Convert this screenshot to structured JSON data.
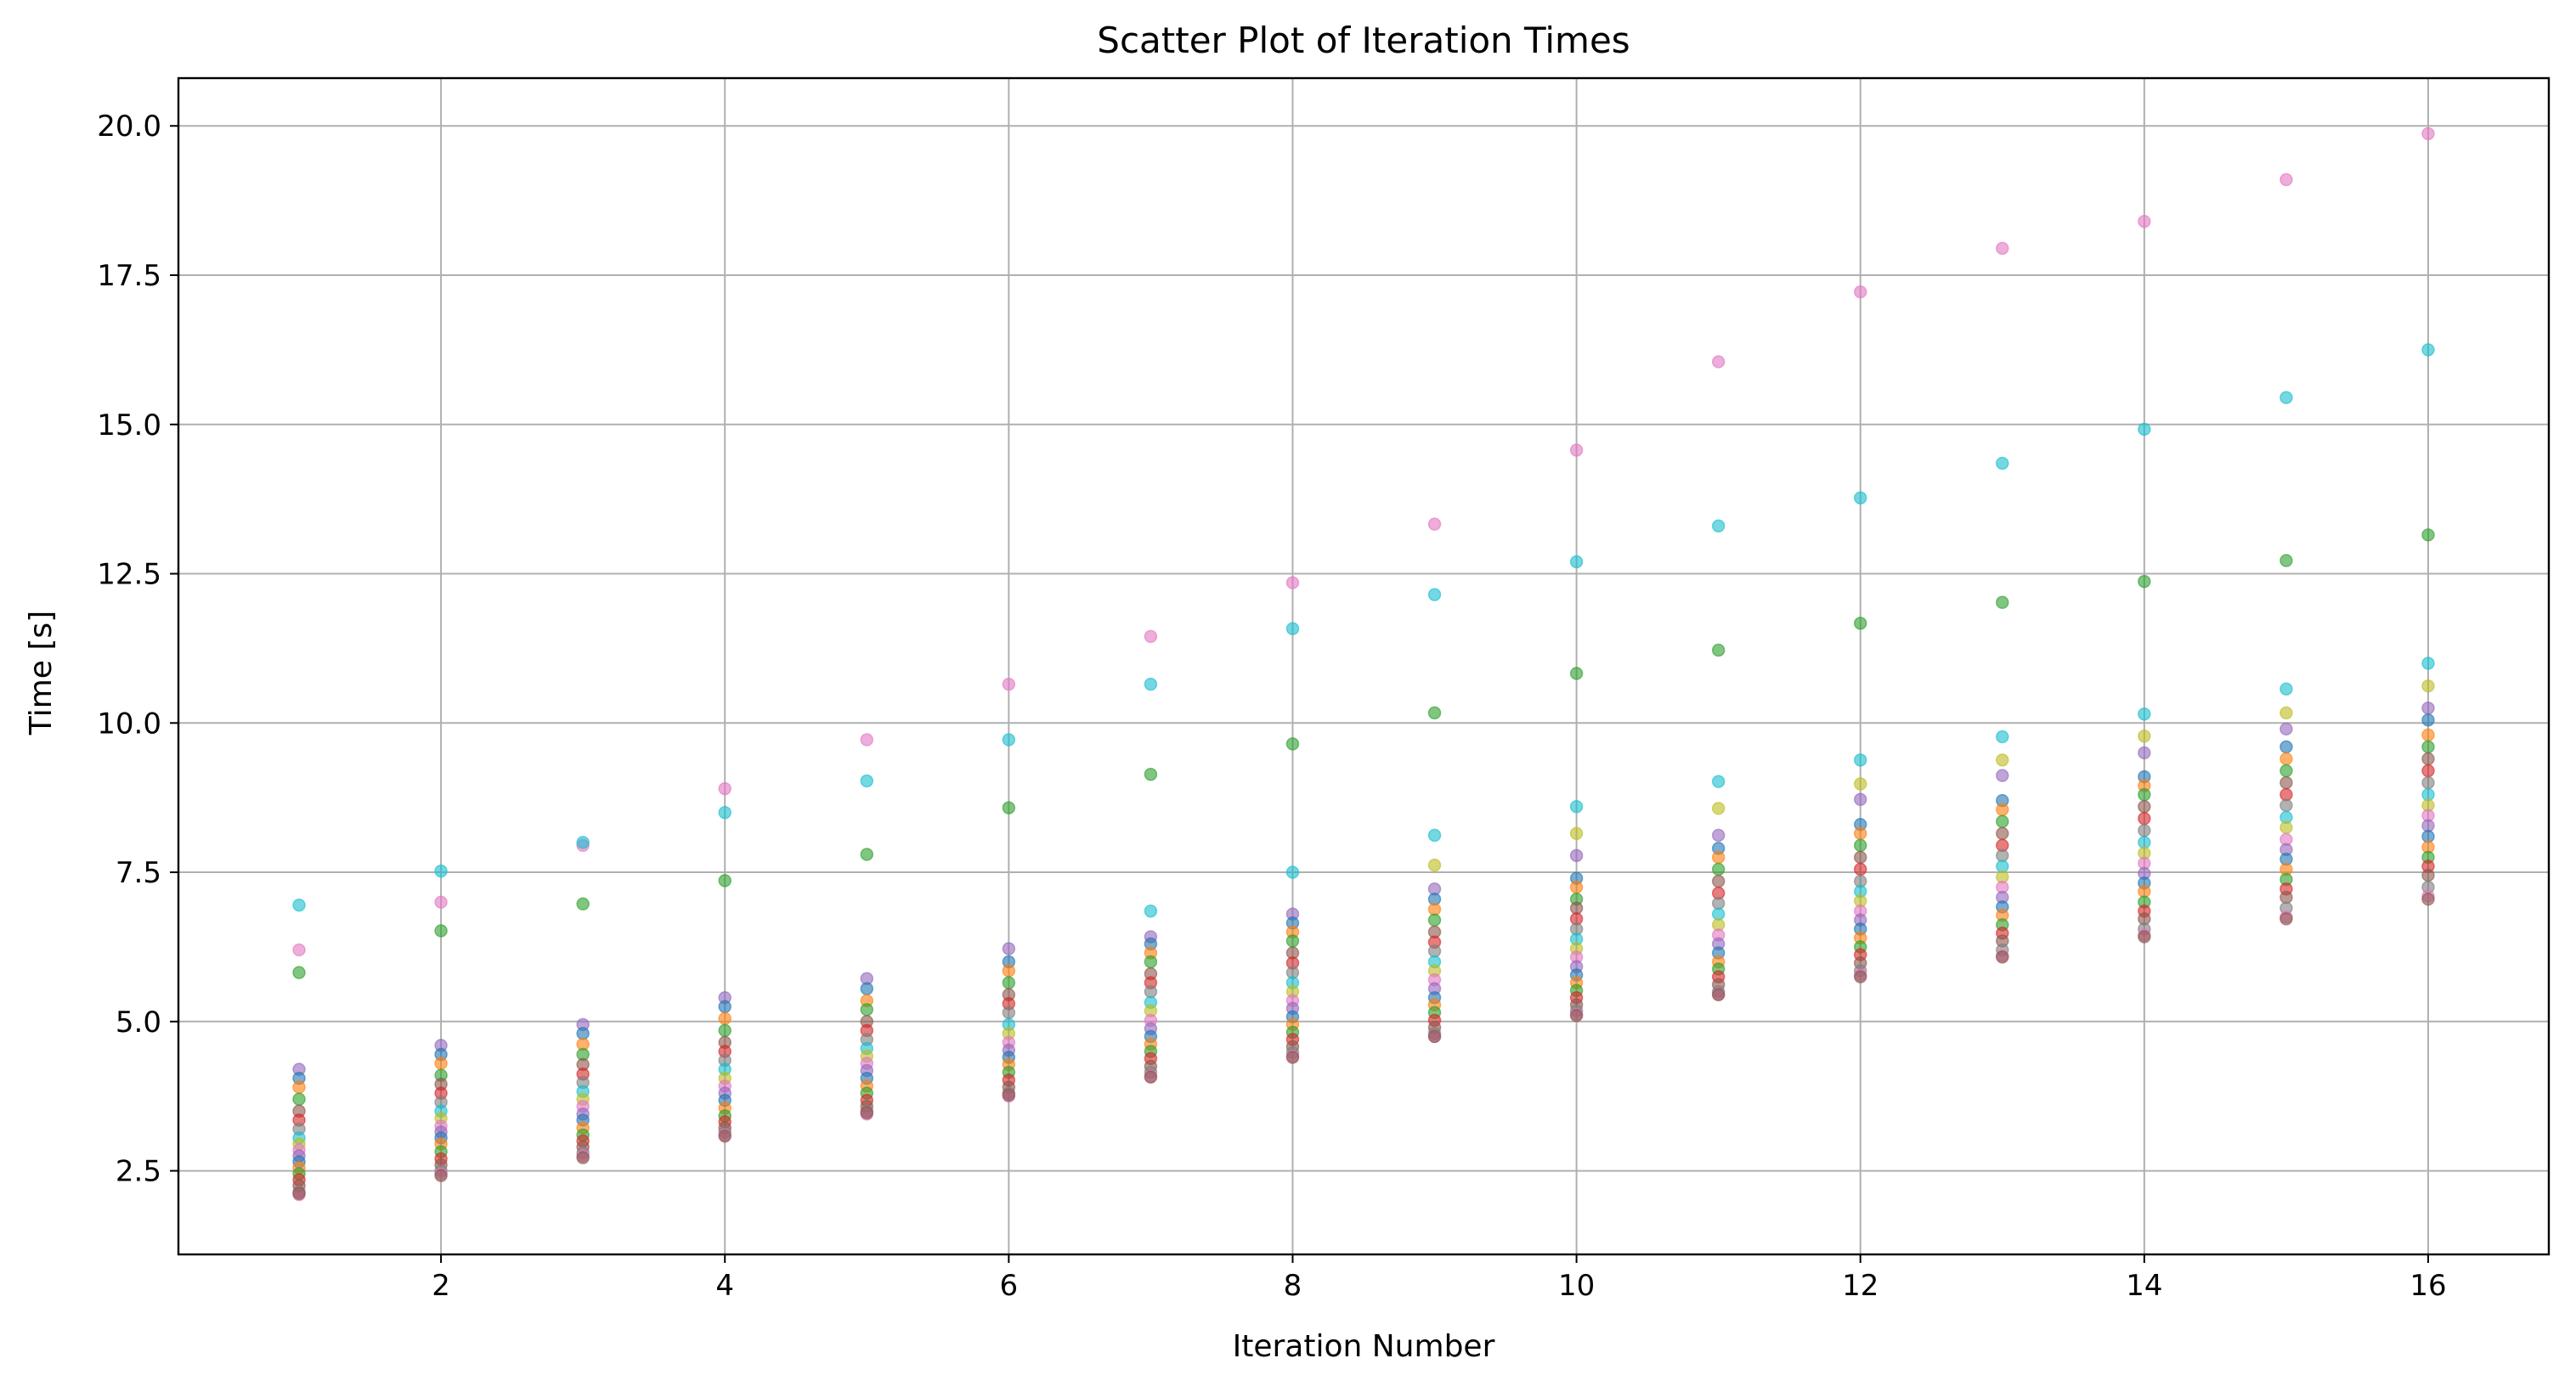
{
  "chart_data": {
    "type": "scatter",
    "title": "Scatter Plot of Iteration Times",
    "xlabel": "Iteration Number",
    "ylabel": "Time [s]",
    "xlim": [
      0.15,
      16.85
    ],
    "ylim": [
      1.1,
      20.8
    ],
    "xticks": [
      2,
      4,
      6,
      8,
      10,
      12,
      14,
      16
    ],
    "yticks": [
      2.5,
      5.0,
      7.5,
      10.0,
      12.5,
      15.0,
      17.5,
      20.0
    ],
    "xtick_labels": [
      "2",
      "4",
      "6",
      "8",
      "10",
      "12",
      "14",
      "16"
    ],
    "ytick_labels": [
      "2.5",
      "5.0",
      "7.5",
      "10.0",
      "12.5",
      "15.0",
      "17.5",
      "20.0"
    ],
    "grid": true,
    "legend": "none",
    "marker_opacity": 0.6,
    "colors": [
      "#1f77b4",
      "#ff7f0e",
      "#2ca02c",
      "#d62728",
      "#9467bd",
      "#8c564b",
      "#e377c2",
      "#7f7f7f",
      "#bcbd22",
      "#17becf"
    ],
    "x": [
      1,
      2,
      3,
      4,
      5,
      6,
      7,
      8,
      9,
      10,
      11,
      12,
      13,
      14,
      15,
      16
    ],
    "series": [
      {
        "color": "#e377c2",
        "values": [
          6.2,
          7.0,
          7.95,
          8.9,
          9.72,
          10.65,
          11.45,
          12.35,
          13.33,
          14.57,
          16.05,
          17.22,
          17.95,
          18.4,
          19.1,
          19.87
        ]
      },
      {
        "color": "#17becf",
        "values": [
          6.95,
          7.52,
          8.0,
          8.5,
          9.03,
          9.72,
          10.65,
          11.58,
          12.15,
          12.7,
          13.3,
          13.77,
          14.35,
          14.92,
          15.45,
          16.25
        ]
      },
      {
        "color": "#2ca02c",
        "values": [
          5.82,
          6.52,
          6.97,
          7.36,
          7.8,
          8.58,
          9.14,
          9.65,
          10.17,
          10.83,
          11.22,
          11.67,
          12.02,
          12.37,
          12.72,
          13.15
        ]
      },
      {
        "color": "#17becf",
        "values": [
          null,
          null,
          null,
          null,
          null,
          null,
          6.85,
          7.5,
          8.12,
          8.6,
          9.02,
          9.38,
          9.77,
          10.15,
          10.57,
          11.0
        ]
      },
      {
        "color": "#bcbd22",
        "values": [
          null,
          null,
          null,
          null,
          null,
          null,
          null,
          null,
          7.62,
          8.15,
          8.57,
          8.98,
          9.38,
          9.78,
          10.17,
          10.62
        ]
      },
      {
        "color": "#9467bd",
        "values": [
          4.2,
          4.6,
          4.95,
          5.4,
          5.72,
          6.22,
          6.42,
          6.8,
          7.22,
          7.78,
          8.12,
          8.72,
          9.12,
          9.5,
          9.9,
          10.25
        ]
      },
      {
        "color": "#1f77b4",
        "values": [
          4.05,
          4.45,
          4.8,
          5.25,
          5.55,
          6.0,
          6.3,
          6.65,
          7.05,
          7.4,
          7.9,
          8.3,
          8.7,
          9.1,
          9.6,
          10.05
        ]
      },
      {
        "color": "#ff7f0e",
        "values": [
          3.9,
          4.3,
          4.62,
          5.05,
          5.35,
          5.85,
          6.15,
          6.5,
          6.88,
          7.25,
          7.75,
          8.15,
          8.55,
          8.95,
          9.4,
          9.8
        ]
      },
      {
        "color": "#2ca02c",
        "values": [
          3.7,
          4.1,
          4.45,
          4.85,
          5.2,
          5.65,
          6.0,
          6.35,
          6.7,
          7.05,
          7.55,
          7.95,
          8.35,
          8.8,
          9.2,
          9.6
        ]
      },
      {
        "color": "#8c564b",
        "values": [
          3.5,
          3.95,
          4.28,
          4.65,
          5.0,
          5.45,
          5.8,
          6.15,
          6.5,
          6.9,
          7.35,
          7.75,
          8.15,
          8.6,
          9.0,
          9.4
        ]
      },
      {
        "color": "#d62728",
        "values": [
          3.35,
          3.8,
          4.12,
          4.5,
          4.85,
          5.3,
          5.65,
          5.98,
          6.33,
          6.72,
          7.15,
          7.55,
          7.95,
          8.4,
          8.8,
          9.2
        ]
      },
      {
        "color": "#7f7f7f",
        "values": [
          3.2,
          3.65,
          3.98,
          4.35,
          4.7,
          5.15,
          5.5,
          5.82,
          6.18,
          6.55,
          6.98,
          7.35,
          7.78,
          8.2,
          8.62,
          9.0
        ]
      },
      {
        "color": "#17becf",
        "values": [
          3.05,
          3.5,
          3.83,
          4.2,
          4.55,
          4.95,
          5.32,
          5.65,
          6.0,
          6.38,
          6.8,
          7.18,
          7.6,
          8.0,
          8.42,
          8.8
        ]
      },
      {
        "color": "#bcbd22",
        "values": [
          2.95,
          3.38,
          3.7,
          4.05,
          4.42,
          4.8,
          5.18,
          5.5,
          5.85,
          6.22,
          6.62,
          7.02,
          7.42,
          7.82,
          8.25,
          8.62
        ]
      },
      {
        "color": "#e377c2",
        "values": [
          2.85,
          3.25,
          3.58,
          3.92,
          4.3,
          4.65,
          5.02,
          5.35,
          5.7,
          6.08,
          6.45,
          6.85,
          7.25,
          7.65,
          8.05,
          8.45
        ]
      },
      {
        "color": "#9467bd",
        "values": [
          2.75,
          3.15,
          3.45,
          3.8,
          4.18,
          4.52,
          4.88,
          5.22,
          5.55,
          5.92,
          6.3,
          6.7,
          7.08,
          7.48,
          7.88,
          8.28
        ]
      },
      {
        "color": "#1f77b4",
        "values": [
          2.65,
          3.05,
          3.35,
          3.68,
          4.05,
          4.4,
          4.75,
          5.08,
          5.4,
          5.78,
          6.15,
          6.55,
          6.92,
          7.32,
          7.72,
          8.1
        ]
      },
      {
        "color": "#ff7f0e",
        "values": [
          2.55,
          2.95,
          3.22,
          3.55,
          3.92,
          4.28,
          4.62,
          4.95,
          5.28,
          5.65,
          6.0,
          6.4,
          6.78,
          7.18,
          7.55,
          7.92
        ]
      },
      {
        "color": "#2ca02c",
        "values": [
          2.45,
          2.82,
          3.1,
          3.42,
          3.8,
          4.15,
          4.5,
          4.82,
          5.15,
          5.52,
          5.88,
          6.25,
          6.62,
          7.0,
          7.38,
          7.75
        ]
      },
      {
        "color": "#d62728",
        "values": [
          2.35,
          2.7,
          3.0,
          3.32,
          3.68,
          4.02,
          4.38,
          4.7,
          5.02,
          5.4,
          5.75,
          6.12,
          6.48,
          6.85,
          7.22,
          7.6
        ]
      },
      {
        "color": "#8c564b",
        "values": [
          2.25,
          2.6,
          2.9,
          3.22,
          3.58,
          3.9,
          4.25,
          4.58,
          4.9,
          5.28,
          5.62,
          5.98,
          6.35,
          6.72,
          7.08,
          7.45
        ]
      },
      {
        "color": "#7f7f7f",
        "values": [
          2.15,
          2.5,
          2.8,
          3.15,
          3.5,
          3.8,
          4.15,
          4.48,
          4.8,
          5.18,
          5.5,
          5.85,
          6.2,
          6.55,
          6.9,
          7.25
        ]
      },
      {
        "color": "#e377c2",
        "values": [
          2.1,
          2.45,
          2.75,
          3.1,
          3.45,
          3.75,
          4.08,
          4.42,
          4.75,
          5.12,
          5.45,
          5.78,
          6.1,
          6.45,
          6.75,
          7.1
        ]
      },
      {
        "color": "#8c564b",
        "values": [
          2.12,
          2.42,
          2.72,
          3.08,
          3.47,
          3.77,
          4.07,
          4.4,
          4.75,
          5.1,
          5.45,
          5.75,
          6.08,
          6.42,
          6.72,
          7.05
        ]
      }
    ]
  }
}
